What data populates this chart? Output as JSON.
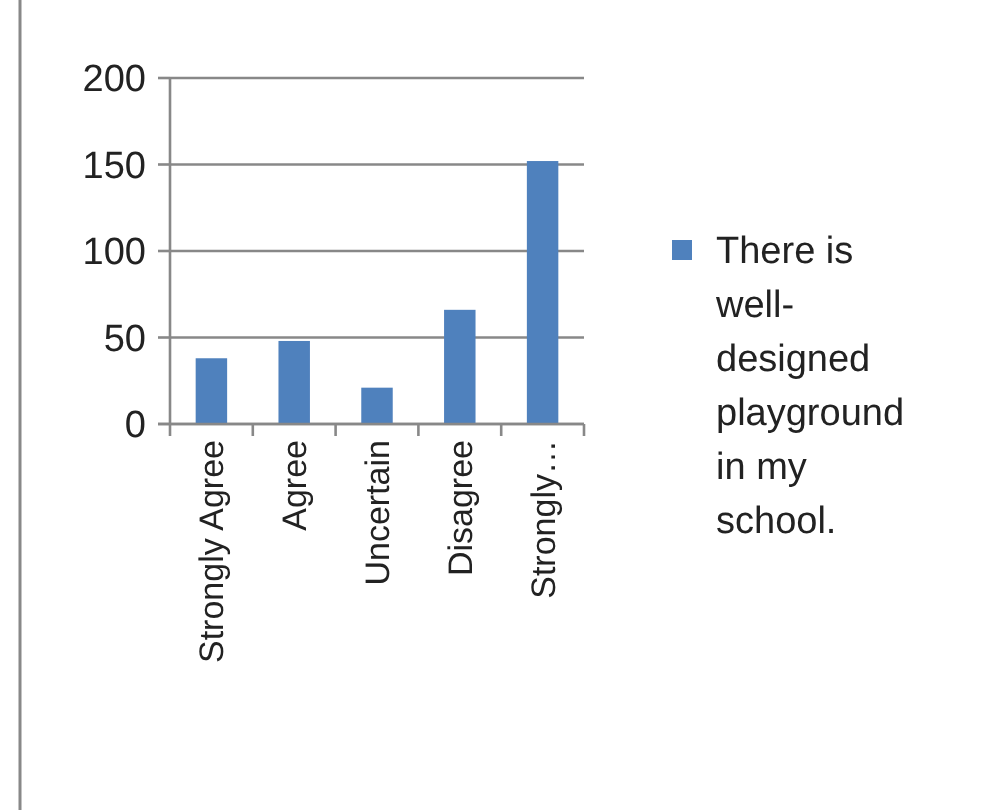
{
  "chart_data": {
    "type": "bar",
    "categories": [
      "Strongly Agree",
      "Agree",
      "Uncertain",
      "Disagree",
      "Strongly…"
    ],
    "series": [
      {
        "name": "There is well-designed playground in my school.",
        "color": "#4f81bd",
        "values": [
          38,
          48,
          21,
          66,
          152
        ]
      }
    ],
    "ylim": [
      0,
      200
    ],
    "yticks": [
      0,
      50,
      100,
      150,
      200
    ],
    "grid": "y",
    "legend": "right"
  }
}
